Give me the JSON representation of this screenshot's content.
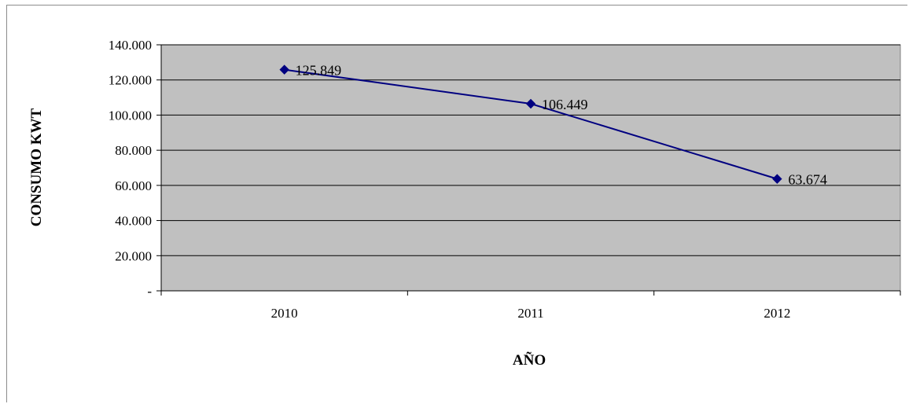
{
  "chart_data": {
    "type": "line",
    "categories": [
      "2010",
      "2011",
      "2012"
    ],
    "series": [
      {
        "values": [
          125849,
          106449,
          63674
        ],
        "data_labels": [
          "125.849",
          "106.449",
          "63.674"
        ],
        "color": "#000080"
      }
    ],
    "xlabel": "AÑO",
    "ylabel": "CONSUMO KWT",
    "ylim": [
      0,
      140000
    ],
    "yticks": [
      0,
      20000,
      40000,
      60000,
      80000,
      100000,
      120000,
      140000
    ],
    "ytick_labels": [
      "-",
      "20.000",
      "40.000",
      "60.000",
      "80.000",
      "100.000",
      "120.000",
      "140.000"
    ],
    "grid": true,
    "legend": "none",
    "plot_background": "#c0c0c0",
    "marker": "diamond"
  }
}
